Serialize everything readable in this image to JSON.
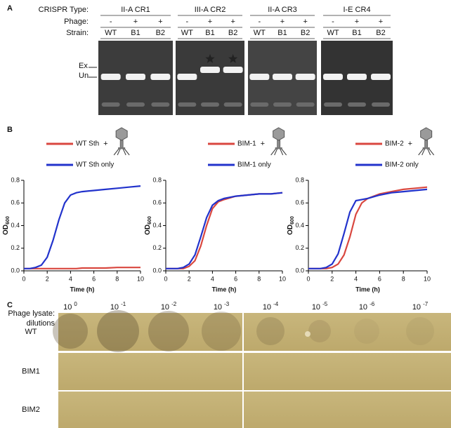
{
  "panel_labels": {
    "a": "A",
    "b": "B",
    "c": "C"
  },
  "panel_a": {
    "row_labels": [
      "CRISPR Type:",
      "Phage:",
      "Strain:"
    ],
    "groups": [
      {
        "name": "II-A CR1",
        "phage": [
          "-",
          "+",
          "+"
        ],
        "strains": [
          "WT",
          "B1",
          "B2"
        ]
      },
      {
        "name": "III-A CR2",
        "phage": [
          "-",
          "+",
          "+"
        ],
        "strains": [
          "WT",
          "B1",
          "B2"
        ]
      },
      {
        "name": "II-A CR3",
        "phage": [
          "-",
          "+",
          "+"
        ],
        "strains": [
          "WT",
          "B1",
          "B2"
        ]
      },
      {
        "name": "I-E CR4",
        "phage": [
          "-",
          "+",
          "+"
        ],
        "strains": [
          "WT",
          "B1",
          "B2"
        ]
      }
    ],
    "band_labels": [
      "Ex",
      "Un"
    ]
  },
  "chart_data": [
    {
      "type": "line",
      "x": [
        0,
        0.5,
        1,
        1.5,
        2,
        2.5,
        3,
        3.5,
        4,
        4.5,
        5,
        6,
        7,
        8,
        9,
        10
      ],
      "xlim": [
        0,
        10
      ],
      "xticks": [
        0,
        2,
        4,
        6,
        8,
        10
      ],
      "ylim": [
        0,
        0.8
      ],
      "yticks": [
        {
          "value": 0,
          "label": "0.0"
        },
        0.2,
        0.4,
        0.6,
        0.8
      ],
      "x_label": "Time (h)",
      "y_label": "OD",
      "y_label_sub": "600",
      "phage_sign": "+",
      "series": [
        {
          "name": "WT Sth",
          "color": "#d9473f",
          "values": [
            0.02,
            0.02,
            0.02,
            0.02,
            0.02,
            0.02,
            0.02,
            0.02,
            0.02,
            0.02,
            0.025,
            0.025,
            0.025,
            0.03,
            0.03,
            0.03
          ]
        },
        {
          "name": "WT Sth only",
          "color": "#2233cc",
          "values": [
            0.02,
            0.02,
            0.03,
            0.05,
            0.12,
            0.27,
            0.45,
            0.6,
            0.67,
            0.69,
            0.7,
            0.71,
            0.72,
            0.73,
            0.74,
            0.75
          ]
        }
      ]
    },
    {
      "type": "line",
      "x": [
        0,
        0.5,
        1,
        1.5,
        2,
        2.5,
        3,
        3.5,
        4,
        4.5,
        5,
        6,
        7,
        8,
        9,
        10
      ],
      "xlim": [
        0,
        10
      ],
      "xticks": [
        0,
        2,
        4,
        6,
        8,
        10
      ],
      "ylim": [
        0,
        0.8
      ],
      "yticks": [
        {
          "value": 0,
          "label": "0.0"
        },
        0.2,
        0.4,
        0.6,
        0.8
      ],
      "x_label": "Time (h)",
      "y_label": "OD",
      "y_label_sub": "600",
      "phage_sign": "+",
      "series": [
        {
          "name": "BIM-1",
          "color": "#d9473f",
          "values": [
            0.02,
            0.02,
            0.02,
            0.02,
            0.04,
            0.09,
            0.22,
            0.4,
            0.55,
            0.61,
            0.63,
            0.66,
            0.67,
            0.68,
            0.68,
            0.69
          ]
        },
        {
          "name": "BIM-1 only",
          "color": "#2233cc",
          "values": [
            0.02,
            0.02,
            0.02,
            0.03,
            0.06,
            0.14,
            0.3,
            0.47,
            0.58,
            0.62,
            0.64,
            0.66,
            0.67,
            0.68,
            0.68,
            0.69
          ]
        }
      ]
    },
    {
      "type": "line",
      "x": [
        0,
        0.5,
        1,
        1.5,
        2,
        2.5,
        3,
        3.5,
        4,
        4.5,
        5,
        6,
        7,
        8,
        9,
        10
      ],
      "xlim": [
        0,
        10
      ],
      "xticks": [
        0,
        2,
        4,
        6,
        8,
        10
      ],
      "ylim": [
        0,
        0.8
      ],
      "yticks": [
        {
          "value": 0,
          "label": "0.0"
        },
        0.2,
        0.4,
        0.6,
        0.8
      ],
      "x_label": "Time (h)",
      "y_label": "OD",
      "y_label_sub": "600",
      "phage_sign": "+",
      "series": [
        {
          "name": "BIM-2",
          "color": "#d9473f",
          "values": [
            0.02,
            0.02,
            0.02,
            0.02,
            0.03,
            0.06,
            0.14,
            0.3,
            0.5,
            0.6,
            0.64,
            0.68,
            0.7,
            0.72,
            0.73,
            0.74
          ]
        },
        {
          "name": "BIM-2 only",
          "color": "#2233cc",
          "values": [
            0.02,
            0.02,
            0.02,
            0.03,
            0.06,
            0.15,
            0.33,
            0.52,
            0.62,
            0.63,
            0.64,
            0.67,
            0.69,
            0.7,
            0.71,
            0.72
          ]
        }
      ]
    }
  ],
  "panel_c": {
    "lysate_label": [
      "Phage lysate:",
      "dilutions"
    ],
    "dilutions": [
      {
        "base": "10",
        "exp": "0"
      },
      {
        "base": "10",
        "exp": "-1"
      },
      {
        "base": "10",
        "exp": "-2"
      },
      {
        "base": "10",
        "exp": "-3"
      },
      {
        "base": "10",
        "exp": "-4"
      },
      {
        "base": "10",
        "exp": "-5"
      },
      {
        "base": "10",
        "exp": "-6"
      },
      {
        "base": "10",
        "exp": "-7"
      }
    ],
    "rows": [
      "WT",
      "BIM1",
      "BIM2"
    ]
  }
}
